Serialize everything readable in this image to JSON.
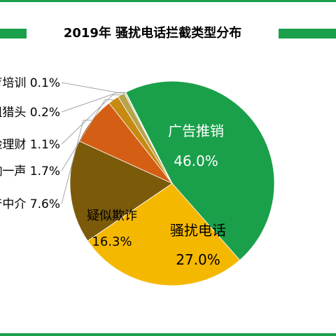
{
  "colors": {
    "accent": "#1aa04a"
  },
  "chart_data": {
    "type": "pie",
    "title": "2019年 骚扰电话拦截类型分布",
    "slices": [
      {
        "label": "广告推销",
        "value": 46.0,
        "display": "46.0%",
        "color": "#1aa04a",
        "label_color": "#ffffff"
      },
      {
        "label": "骚扰电话",
        "value": 27.0,
        "display": "27.0%",
        "color": "#f5b800",
        "label_color": "#000000"
      },
      {
        "label": "疑似欺诈",
        "value": 16.3,
        "display": "16.3%",
        "color": "#7b5a0a",
        "label_color": "#000000"
      },
      {
        "label": "房产中介",
        "value": 7.6,
        "display": "7.6%",
        "color": "#d45e14",
        "label_color": "#000000"
      },
      {
        "label": "响一声",
        "value": 1.7,
        "display": "1.7%",
        "color": "#c58a12",
        "label_color": "#000000"
      },
      {
        "label": "保险理财",
        "value": 1.1,
        "display": "1.1%",
        "color": "#b6a34a",
        "label_color": "#000000"
      },
      {
        "label": "出租猎头",
        "value": 0.2,
        "display": "0.2%",
        "color": "#9bbd6a",
        "label_color": "#000000"
      },
      {
        "label": "教育培训",
        "value": 0.1,
        "display": "0.1%",
        "color": "#70b6d9",
        "label_color": "#000000"
      }
    ]
  }
}
